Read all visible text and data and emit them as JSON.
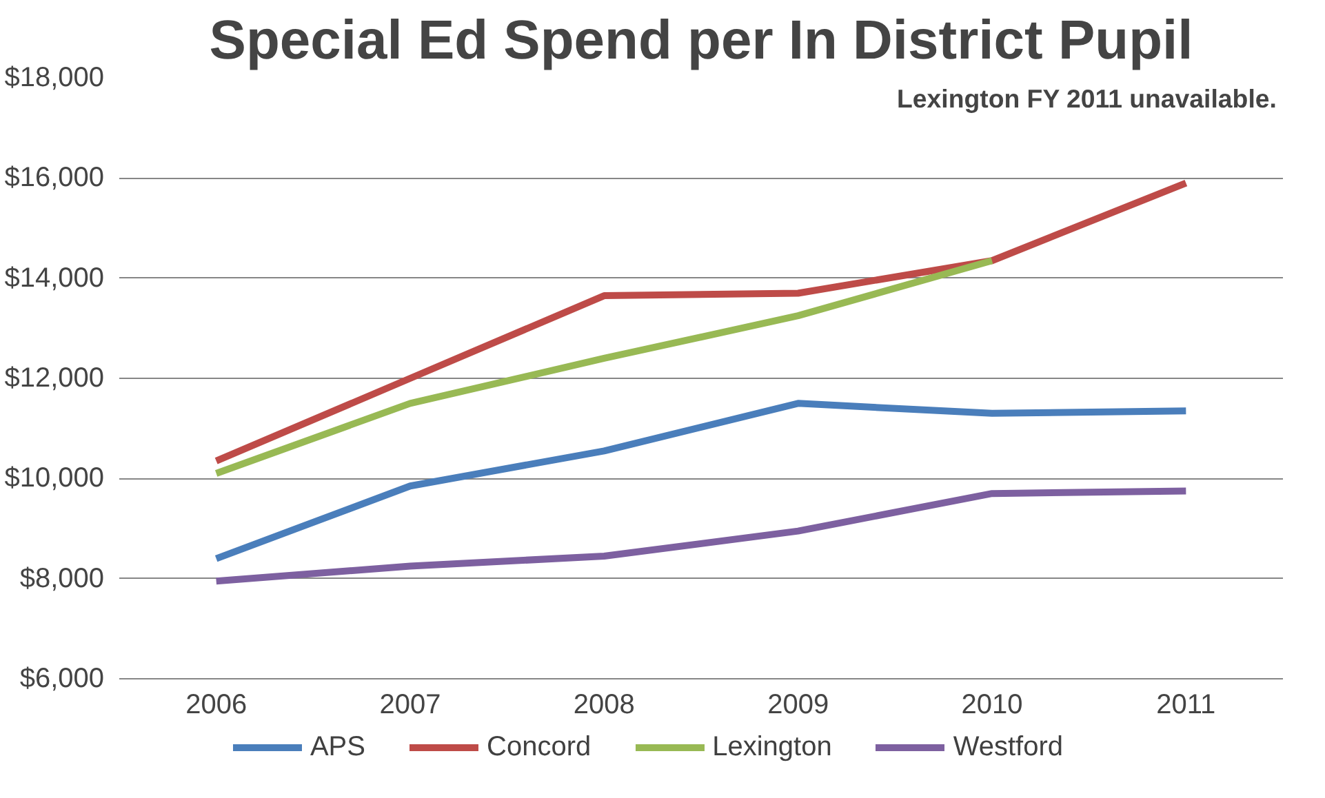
{
  "chart_data": {
    "type": "line",
    "title": "Special Ed Spend per In District Pupil",
    "categories": [
      "2006",
      "2007",
      "2008",
      "2009",
      "2010",
      "2011"
    ],
    "series": [
      {
        "name": "APS",
        "color": "#4a7ebb",
        "values": [
          8400,
          9850,
          10550,
          11500,
          11300,
          11350
        ]
      },
      {
        "name": "Concord",
        "color": "#be4b48",
        "values": [
          10350,
          12000,
          13650,
          13700,
          14350,
          15900
        ]
      },
      {
        "name": "Lexington",
        "color": "#98b954",
        "values": [
          10100,
          11500,
          12400,
          13250,
          14350,
          null
        ]
      },
      {
        "name": "Westford",
        "color": "#7d60a0",
        "values": [
          7950,
          8250,
          8450,
          8950,
          9700,
          9750
        ]
      }
    ],
    "ylim": [
      6000,
      18000
    ],
    "yticks": [
      {
        "value": 6000,
        "label": "$6,000"
      },
      {
        "value": 8000,
        "label": "$8,000"
      },
      {
        "value": 10000,
        "label": "$10,000"
      },
      {
        "value": 12000,
        "label": "$12,000"
      },
      {
        "value": 14000,
        "label": "$14,000"
      },
      {
        "value": 16000,
        "label": "$16,000"
      },
      {
        "value": 18000,
        "label": "$18,000"
      }
    ],
    "annotations": [
      "Lexington FY 2011 unavailable."
    ],
    "grid": "y",
    "legend": "bottom",
    "marker": "none",
    "line_style": "solid"
  }
}
